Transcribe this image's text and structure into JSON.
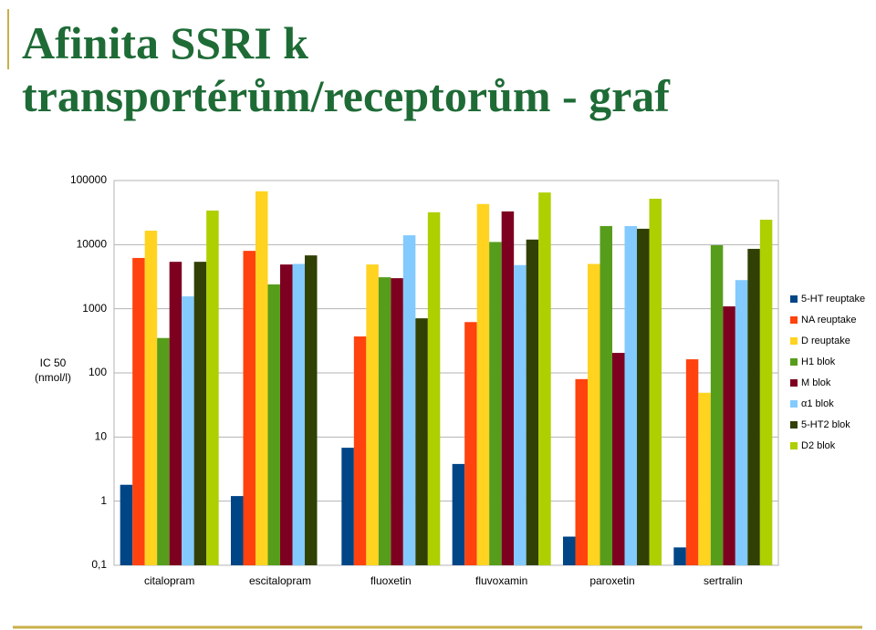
{
  "chart_data": {
    "type": "bar",
    "title": "Afinita SSRI k transportérům/receptorům - graf",
    "y_label": "IC 50 (nmol/l)",
    "log_scale": true,
    "grid": true,
    "legend_position": "right",
    "categories": [
      "citalopram",
      "escitalopram",
      "fluoxetin",
      "fluvoxamin",
      "paroxetin",
      "sertralin"
    ],
    "ylim": [
      0.1,
      100000
    ],
    "yticks": [
      {
        "value": 0.1,
        "label": "0,1"
      },
      1,
      10,
      100,
      1000,
      10000,
      100000
    ],
    "series": [
      {
        "name": "5-HT reuptake",
        "color": "#004586",
        "values": [
          1.8,
          1.2,
          6.8,
          3.8,
          0.28,
          0.19
        ]
      },
      {
        "name": "NA reuptake",
        "color": "#ff420e",
        "values": [
          6200,
          8000,
          370,
          620,
          80,
          163
        ]
      },
      {
        "name": "D reuptake",
        "color": "#ffd320",
        "values": [
          16500,
          68000,
          4900,
          43000,
          5000,
          49
        ]
      },
      {
        "name": "H1 blok",
        "color": "#579d1c",
        "values": [
          350,
          2400,
          3100,
          11000,
          19500,
          9800
        ]
      },
      {
        "name": "M blok",
        "color": "#7e0021",
        "values": [
          5400,
          4900,
          3000,
          33000,
          205,
          1090
        ]
      },
      {
        "name": "α1 blok",
        "color": "#83caff",
        "values": [
          1560,
          5000,
          14000,
          4800,
          19500,
          2800
        ]
      },
      {
        "name": "5-HT2 blok",
        "color": "#314004",
        "values": [
          5400,
          6800,
          710,
          12000,
          17700,
          8600
        ]
      },
      {
        "name": "D2 blok",
        "color": "#aecf00",
        "values": [
          34000,
          null,
          32000,
          65000,
          52000,
          24500
        ]
      }
    ]
  }
}
